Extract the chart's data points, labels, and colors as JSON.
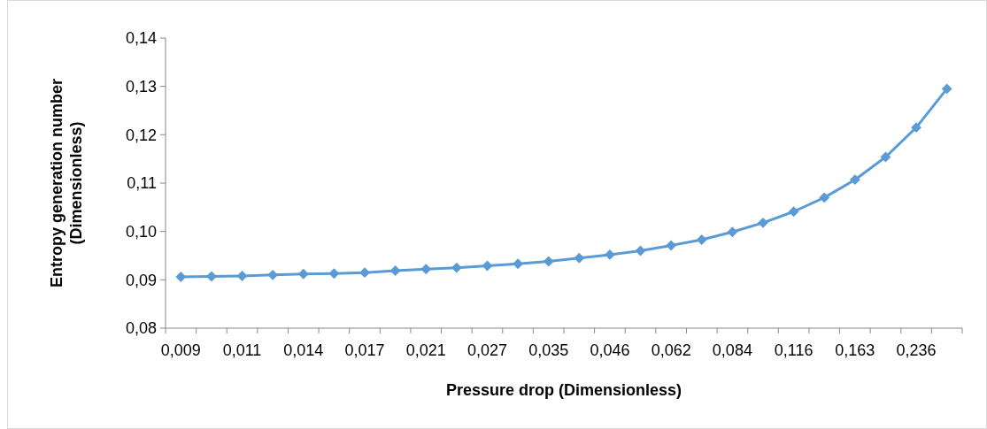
{
  "chart_data": {
    "type": "line",
    "xlabel": "Pressure drop (Dimensionless)",
    "ylabel": "Entropy generation number\n(Dimensionless)",
    "categories": [
      "0,009",
      null,
      "0,011",
      null,
      "0,014",
      null,
      "0,017",
      null,
      "0,021",
      null,
      "0,027",
      null,
      "0,035",
      null,
      "0,046",
      null,
      "0,062",
      null,
      "0,084",
      null,
      "0,116",
      null,
      "0,163",
      null,
      "0,236",
      null
    ],
    "series": [
      {
        "color": "#5b9bd5",
        "values": [
          0.0906,
          0.0907,
          0.0908,
          0.091,
          0.0912,
          0.0913,
          0.0915,
          0.0919,
          0.0922,
          0.0925,
          0.0929,
          0.0933,
          0.0938,
          0.0945,
          0.0952,
          0.096,
          0.0971,
          0.0983,
          0.0999,
          0.1018,
          0.1041,
          0.107,
          0.1107,
          0.1154,
          0.1215,
          0.1295
        ]
      }
    ],
    "ylim": [
      0.08,
      0.14
    ],
    "yticks": [
      {
        "value": 0.08,
        "label": "0,08"
      },
      {
        "value": 0.09,
        "label": "0,09"
      },
      {
        "value": 0.1,
        "label": "0,10"
      },
      {
        "value": 0.11,
        "label": "0,11"
      },
      {
        "value": 0.12,
        "label": "0,12"
      },
      {
        "value": 0.13,
        "label": "0,13"
      },
      {
        "value": 0.14,
        "label": "0,14"
      }
    ],
    "marker": "diamond",
    "line_style": "solid",
    "grid": false
  }
}
